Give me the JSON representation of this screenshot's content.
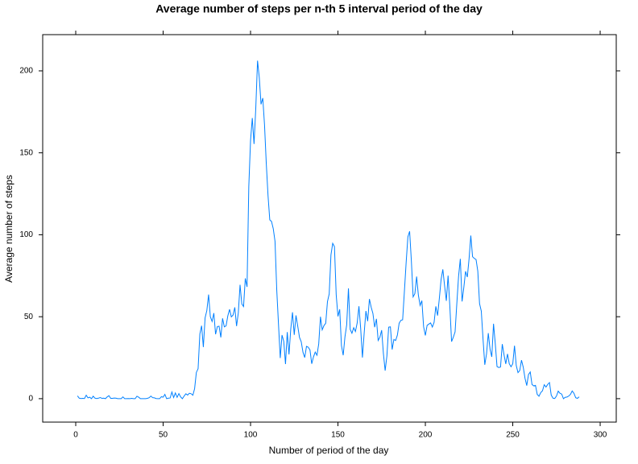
{
  "chart_data": {
    "type": "line",
    "title": "Average number of steps per n-th 5 interval period of the day",
    "x_label": "Number of period of the day",
    "y_label": "Average number of steps",
    "x": [
      1,
      2,
      3,
      4,
      5,
      6,
      7,
      8,
      9,
      10,
      11,
      12,
      13,
      14,
      15,
      16,
      17,
      18,
      19,
      20,
      21,
      22,
      23,
      24,
      25,
      26,
      27,
      28,
      29,
      30,
      31,
      32,
      33,
      34,
      35,
      36,
      37,
      38,
      39,
      40,
      41,
      42,
      43,
      44,
      45,
      46,
      47,
      48,
      49,
      50,
      51,
      52,
      53,
      54,
      55,
      56,
      57,
      58,
      59,
      60,
      61,
      62,
      63,
      64,
      65,
      66,
      67,
      68,
      69,
      70,
      71,
      72,
      73,
      74,
      75,
      76,
      77,
      78,
      79,
      80,
      81,
      82,
      83,
      84,
      85,
      86,
      87,
      88,
      89,
      90,
      91,
      92,
      93,
      94,
      95,
      96,
      97,
      98,
      99,
      100,
      101,
      102,
      103,
      104,
      105,
      106,
      107,
      108,
      109,
      110,
      111,
      112,
      113,
      114,
      115,
      116,
      117,
      118,
      119,
      120,
      121,
      122,
      123,
      124,
      125,
      126,
      127,
      128,
      129,
      130,
      131,
      132,
      133,
      134,
      135,
      136,
      137,
      138,
      139,
      140,
      141,
      142,
      143,
      144,
      145,
      146,
      147,
      148,
      149,
      150,
      151,
      152,
      153,
      154,
      155,
      156,
      157,
      158,
      159,
      160,
      161,
      162,
      163,
      164,
      165,
      166,
      167,
      168,
      169,
      170,
      171,
      172,
      173,
      174,
      175,
      176,
      177,
      178,
      179,
      180,
      181,
      182,
      183,
      184,
      185,
      186,
      187,
      188,
      189,
      190,
      191,
      192,
      193,
      194,
      195,
      196,
      197,
      198,
      199,
      200,
      201,
      202,
      203,
      204,
      205,
      206,
      207,
      208,
      209,
      210,
      211,
      212,
      213,
      214,
      215,
      216,
      217,
      218,
      219,
      220,
      221,
      222,
      223,
      224,
      225,
      226,
      227,
      228,
      229,
      230,
      231,
      232,
      233,
      234,
      235,
      236,
      237,
      238,
      239,
      240,
      241,
      242,
      243,
      244,
      245,
      246,
      247,
      248,
      249,
      250,
      251,
      252,
      253,
      254,
      255,
      256,
      257,
      258,
      259,
      260,
      261,
      262,
      263,
      264,
      265,
      266,
      267,
      268,
      269,
      270,
      271,
      272,
      273,
      274,
      275,
      276,
      277,
      278,
      279,
      280,
      281,
      282,
      283,
      284,
      285,
      286,
      287,
      288
    ],
    "series": [
      {
        "color": "#0080ff",
        "values": [
          1.7,
          0.3,
          0.1,
          0.2,
          0.1,
          2.1,
          0.5,
          0.9,
          0,
          1.5,
          0.3,
          0.1,
          0.3,
          0.7,
          0.2,
          0.3,
          0,
          1.1,
          1.8,
          0.2,
          0.2,
          0.4,
          0.3,
          0,
          0,
          0,
          1.1,
          0,
          0,
          0.1,
          0,
          0.2,
          0,
          0,
          1.5,
          0.9,
          0,
          0,
          0,
          0,
          0.2,
          0.6,
          1.6,
          0.6,
          0.5,
          0.1,
          0,
          0,
          1.2,
          0.9,
          2.6,
          0,
          0.3,
          0.4,
          4.1,
          0.7,
          3.5,
          0.8,
          3.1,
          1.1,
          0,
          1.6,
          3,
          2.2,
          3.3,
          3,
          2.1,
          6.1,
          16,
          18.3,
          39.5,
          44.5,
          31.5,
          49.3,
          53.8,
          63.5,
          50,
          47.1,
          52.2,
          39.3,
          44,
          44.2,
          37.4,
          49,
          43.8,
          44.4,
          50.5,
          54.5,
          49.9,
          51,
          55.7,
          44.3,
          52.3,
          69.5,
          57.8,
          56.2,
          73.4,
          68.2,
          129.4,
          157.5,
          171.2,
          155.4,
          177.3,
          206.2,
          195.9,
          179.6,
          183.4,
          167,
          143.5,
          124,
          109.1,
          108.1,
          103.7,
          96,
          66.2,
          45.2,
          24.8,
          38.8,
          35,
          21.1,
          40.6,
          27,
          42.4,
          52.7,
          38.9,
          50.8,
          44.3,
          37.4,
          34.7,
          28.3,
          25.1,
          31.9,
          31.4,
          29.7,
          21.3,
          25.5,
          28.4,
          26.5,
          33.4,
          50,
          42,
          44.6,
          46,
          59.2,
          63.9,
          87.7,
          94.8,
          92.8,
          63.4,
          50.2,
          54.5,
          32.4,
          26.5,
          37.7,
          45.1,
          67.3,
          42.3,
          39.9,
          43.3,
          41,
          46.2,
          56.4,
          42.8,
          25.1,
          40,
          53.5,
          47.3,
          60.8,
          55.8,
          52,
          43.6,
          48.7,
          35.5,
          37.5,
          41.8,
          27.5,
          17.1,
          26.1,
          43.6,
          43.8,
          30,
          36.1,
          35.5,
          38.8,
          46,
          47.8,
          48.1,
          65.3,
          82.9,
          98.7,
          102.1,
          84,
          62.1,
          64.1,
          74.5,
          63.2,
          56.9,
          59.8,
          43.9,
          38.6,
          44.7,
          45.5,
          46.2,
          43.7,
          46.6,
          56.3,
          50.7,
          61.2,
          72.7,
          78.9,
          68.9,
          59.7,
          75.1,
          56.5,
          34.8,
          37.5,
          40.7,
          58,
          74.7,
          85.3,
          59.3,
          67.8,
          77.7,
          74.2,
          85.3,
          99.5,
          86.6,
          85.6,
          84.9,
          77.8,
          58,
          53.4,
          36.3,
          20.7,
          27.4,
          40,
          30.2,
          25.5,
          45.7,
          33.5,
          19.6,
          19,
          19.3,
          33.3,
          26.8,
          21.2,
          27.3,
          21.3,
          19.5,
          21.3,
          32.3,
          20.2,
          15.9,
          17.2,
          23.5,
          19.2,
          12.5,
          8,
          14.7,
          16.3,
          8.7,
          7.8,
          8.1,
          2.6,
          1.5,
          3.7,
          4.8,
          8.5,
          7.1,
          8.7,
          9.8,
          2.2,
          0.3,
          0.1,
          1.6,
          4.6,
          3.3,
          2.8,
          0,
          0.8,
          1,
          1.6,
          2.6,
          4.7,
          3.3,
          0.6,
          0.2,
          1.1
        ]
      }
    ],
    "xlim": [
      -18.9,
      309.2
    ],
    "ylim": [
      -14.3,
      222.1
    ],
    "xticks": [
      0,
      50,
      100,
      150,
      200,
      250,
      300
    ],
    "yticks": [
      0,
      50,
      100,
      150,
      200
    ],
    "grid": false
  }
}
